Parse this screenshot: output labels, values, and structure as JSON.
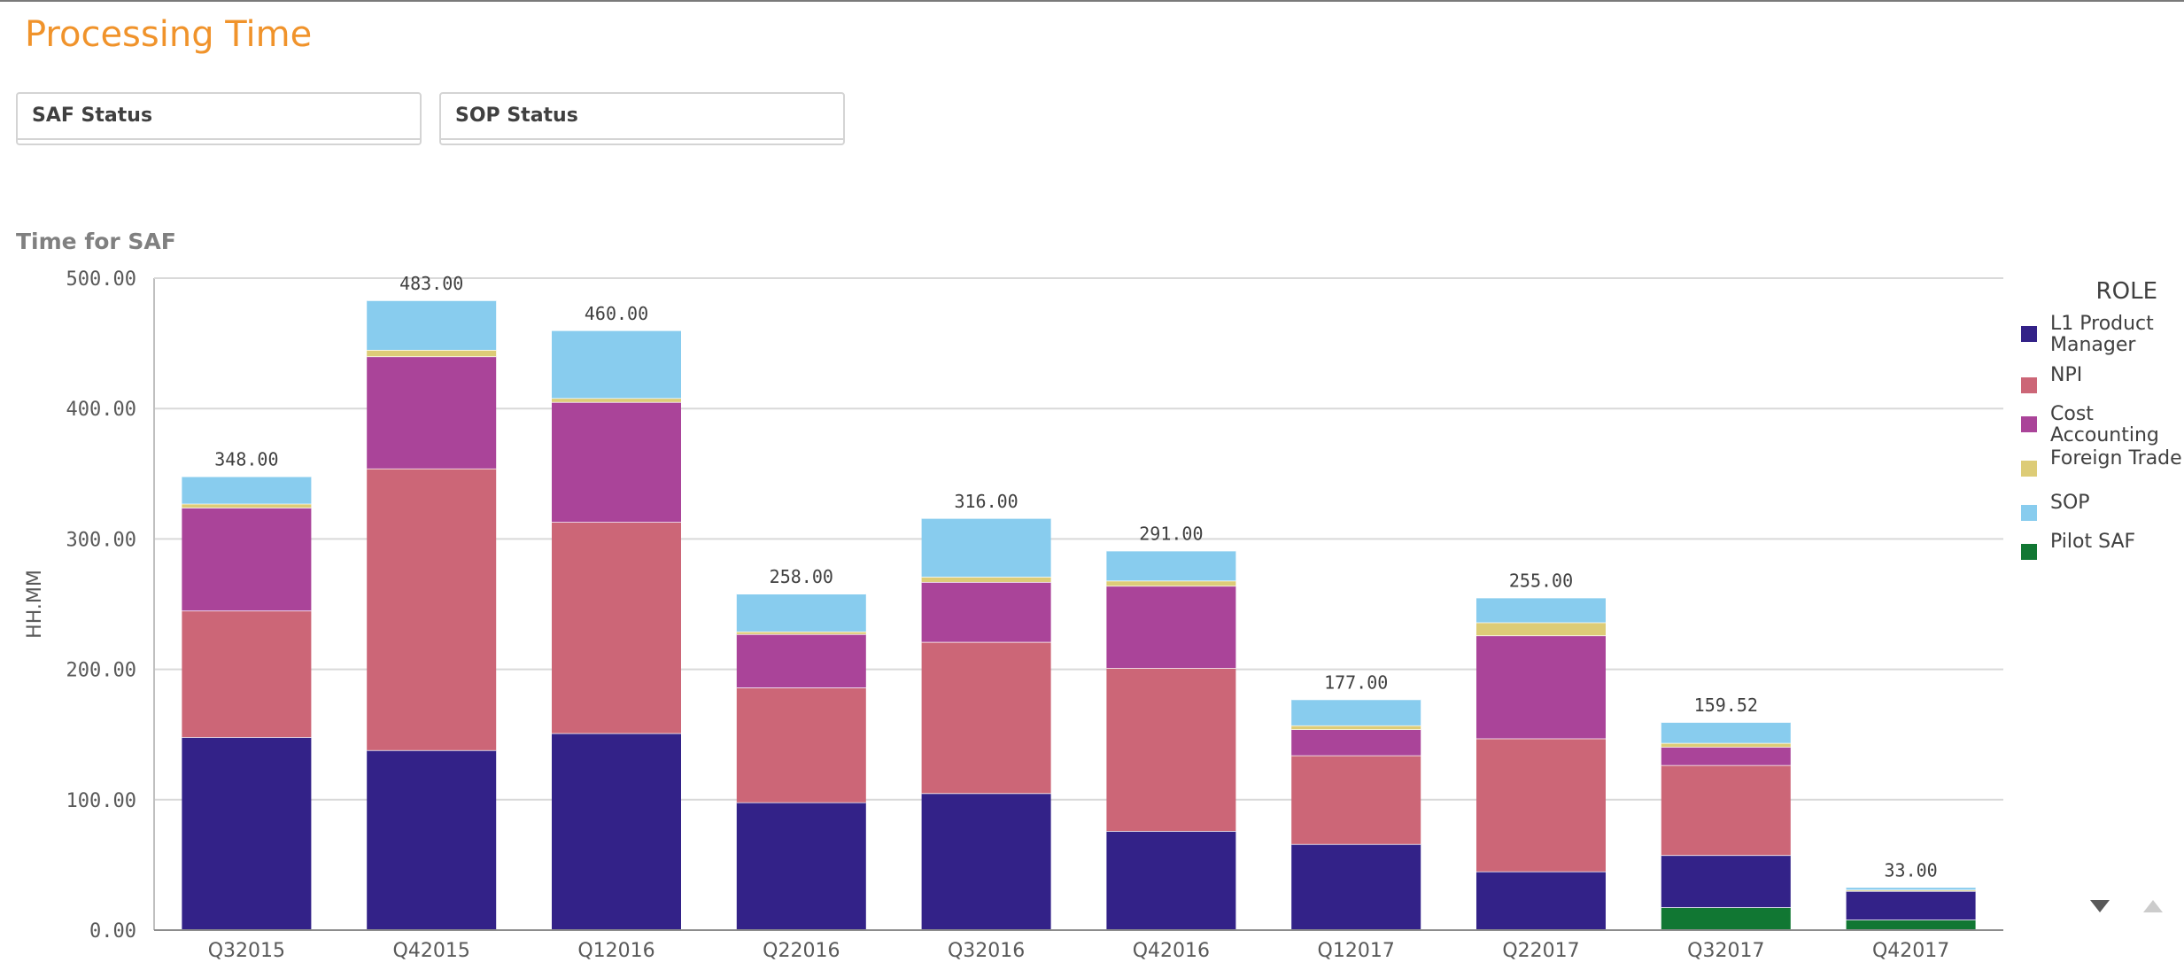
{
  "page": {
    "title": "Processing Time"
  },
  "filters": [
    {
      "label": "SAF Status"
    },
    {
      "label": "SOP Status"
    }
  ],
  "chart_data": {
    "type": "bar",
    "stacked": true,
    "title": "Time for SAF",
    "xlabel": "",
    "ylabel": "HH.MM",
    "ylim": [
      0,
      500
    ],
    "yticks": [
      0,
      100,
      200,
      300,
      400,
      500
    ],
    "ytick_labels": [
      "0.00",
      "100.00",
      "200.00",
      "300.00",
      "400.00",
      "500.00"
    ],
    "grid": true,
    "legend_title": "ROLE",
    "legend_position": "right",
    "categories": [
      "Q32015",
      "Q42015",
      "Q12016",
      "Q22016",
      "Q32016",
      "Q42016",
      "Q12017",
      "Q22017",
      "Q32017",
      "Q42017"
    ],
    "totals": [
      348,
      483,
      460,
      258,
      316,
      291,
      177,
      255,
      159.52,
      33
    ],
    "total_labels": [
      "348.00",
      "483.00",
      "460.00",
      "258.00",
      "316.00",
      "291.00",
      "177.00",
      "255.00",
      "159.52",
      "33.00"
    ],
    "series": [
      {
        "name": "L1 Product Manager",
        "color": "#332288",
        "values": [
          148,
          138,
          151,
          98,
          105,
          76,
          66,
          45,
          40,
          22
        ]
      },
      {
        "name": "NPI",
        "color": "#cc6677",
        "values": [
          97,
          216,
          162,
          88,
          116,
          125,
          68,
          102,
          69,
          0
        ]
      },
      {
        "name": "Cost Accounting",
        "color": "#aa4499",
        "values": [
          79,
          86,
          92,
          41,
          46,
          63,
          20,
          79,
          14,
          0
        ]
      },
      {
        "name": "Foreign Trade",
        "color": "#ddcc77",
        "values": [
          3,
          5,
          3,
          2,
          4,
          4,
          3,
          10,
          3,
          1
        ]
      },
      {
        "name": "SOP",
        "color": "#88ccee",
        "values": [
          21,
          38,
          52,
          29,
          45,
          23,
          20,
          19,
          16,
          2
        ]
      },
      {
        "name": "Pilot SAF",
        "color": "#117733",
        "values": [
          0,
          0,
          0,
          0,
          0,
          0,
          0,
          0,
          17.52,
          8
        ]
      }
    ]
  }
}
